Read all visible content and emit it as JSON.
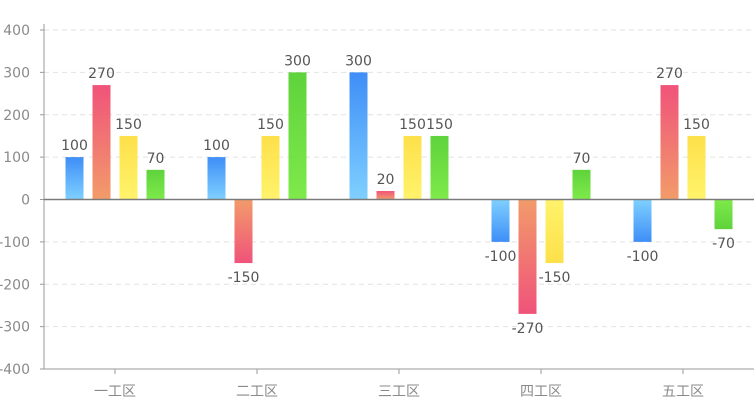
{
  "chart_data": {
    "type": "bar",
    "categories": [
      "一工区",
      "二工区",
      "三工区",
      "四工区",
      "五工区"
    ],
    "series": [
      {
        "values": [
          100,
          100,
          300,
          -100,
          -100
        ],
        "gradient": [
          "#3e8ef7",
          "#7fd0ff"
        ]
      },
      {
        "values": [
          270,
          -150,
          20,
          -270,
          270
        ],
        "gradient": [
          "#f0537a",
          "#f29b6a"
        ]
      },
      {
        "values": [
          150,
          150,
          150,
          -150,
          150
        ],
        "gradient": [
          "#fde04a",
          "#fff36b"
        ]
      },
      {
        "values": [
          70,
          300,
          150,
          70,
          -70
        ],
        "gradient": [
          "#5fd33c",
          "#7eea4a"
        ]
      }
    ],
    "ylim": [
      -400,
      400
    ],
    "yticks": [
      -400,
      -300,
      -200,
      -100,
      0,
      100,
      200,
      300,
      400
    ],
    "grid": true,
    "colors": {
      "grid": "#e2e2e2",
      "axis": "#9a9a9a",
      "zero_line": "#7a7a7a"
    }
  }
}
